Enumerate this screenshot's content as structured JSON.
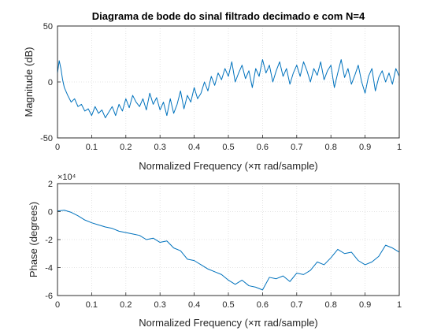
{
  "chart_data": [
    {
      "type": "line",
      "title": "Diagrama de bode do sinal filtrado decimado e com N=4",
      "xlabel": "Normalized Frequency  (×π rad/sample)",
      "ylabel": "Magnitude (dB)",
      "xlim": [
        0,
        1
      ],
      "ylim": [
        -50,
        50
      ],
      "xticks": [
        0,
        0.1,
        0.2,
        0.3,
        0.4,
        0.5,
        0.6,
        0.7,
        0.8,
        0.9,
        1
      ],
      "yticks": [
        -50,
        0,
        50
      ],
      "grid": true,
      "series": [
        {
          "color": "#0072bd",
          "x": [
            0,
            0.005,
            0.01,
            0.015,
            0.02,
            0.03,
            0.04,
            0.05,
            0.06,
            0.07,
            0.08,
            0.09,
            0.1,
            0.11,
            0.12,
            0.13,
            0.14,
            0.15,
            0.16,
            0.17,
            0.18,
            0.19,
            0.2,
            0.21,
            0.22,
            0.23,
            0.24,
            0.25,
            0.26,
            0.27,
            0.28,
            0.29,
            0.3,
            0.31,
            0.32,
            0.33,
            0.34,
            0.35,
            0.36,
            0.37,
            0.38,
            0.39,
            0.4,
            0.41,
            0.42,
            0.43,
            0.44,
            0.45,
            0.46,
            0.47,
            0.48,
            0.49,
            0.5,
            0.51,
            0.52,
            0.53,
            0.54,
            0.55,
            0.56,
            0.57,
            0.58,
            0.59,
            0.6,
            0.61,
            0.62,
            0.63,
            0.64,
            0.65,
            0.66,
            0.67,
            0.68,
            0.69,
            0.7,
            0.71,
            0.72,
            0.73,
            0.74,
            0.75,
            0.76,
            0.77,
            0.78,
            0.79,
            0.8,
            0.81,
            0.82,
            0.83,
            0.84,
            0.85,
            0.86,
            0.87,
            0.88,
            0.89,
            0.9,
            0.91,
            0.92,
            0.93,
            0.94,
            0.95,
            0.96,
            0.97,
            0.98,
            0.99,
            1
          ],
          "values": [
            8,
            19,
            12,
            2,
            -5,
            -12,
            -18,
            -15,
            -22,
            -20,
            -26,
            -24,
            -30,
            -22,
            -28,
            -25,
            -32,
            -27,
            -22,
            -30,
            -20,
            -26,
            -15,
            -23,
            -12,
            -18,
            -22,
            -15,
            -25,
            -10,
            -20,
            -14,
            -25,
            -18,
            -30,
            -15,
            -28,
            -20,
            -8,
            -24,
            -12,
            -18,
            -5,
            -15,
            -10,
            0,
            -8,
            5,
            -3,
            8,
            2,
            12,
            5,
            18,
            0,
            8,
            15,
            3,
            10,
            -5,
            12,
            5,
            20,
            8,
            15,
            0,
            10,
            18,
            5,
            12,
            -2,
            8,
            15,
            5,
            18,
            10,
            0,
            12,
            6,
            18,
            2,
            10,
            15,
            -5,
            8,
            20,
            4,
            12,
            -2,
            6,
            15,
            0,
            -10,
            5,
            12,
            -8,
            4,
            10,
            0,
            8,
            -2,
            12,
            5
          ]
        }
      ]
    },
    {
      "type": "line",
      "title": "",
      "xlabel": "Normalized Frequency  (×π rad/sample)",
      "ylabel": "Phase (degrees)",
      "exponent_label": "×10⁴",
      "xlim": [
        0,
        1
      ],
      "ylim": [
        -6,
        2
      ],
      "xticks": [
        0,
        0.1,
        0.2,
        0.3,
        0.4,
        0.5,
        0.6,
        0.7,
        0.8,
        0.9,
        1
      ],
      "yticks": [
        -6,
        -4,
        -2,
        0,
        2
      ],
      "grid": true,
      "series": [
        {
          "color": "#0072bd",
          "x": [
            0,
            0.02,
            0.04,
            0.06,
            0.08,
            0.1,
            0.12,
            0.14,
            0.16,
            0.18,
            0.2,
            0.22,
            0.24,
            0.26,
            0.28,
            0.3,
            0.32,
            0.34,
            0.36,
            0.38,
            0.4,
            0.42,
            0.44,
            0.46,
            0.48,
            0.5,
            0.52,
            0.54,
            0.56,
            0.58,
            0.6,
            0.62,
            0.64,
            0.66,
            0.68,
            0.7,
            0.72,
            0.74,
            0.76,
            0.78,
            0.8,
            0.82,
            0.84,
            0.86,
            0.88,
            0.9,
            0.92,
            0.94,
            0.96,
            0.98,
            1
          ],
          "values": [
            0.05,
            0.1,
            -0.05,
            -0.3,
            -0.6,
            -0.8,
            -0.95,
            -1.1,
            -1.2,
            -1.4,
            -1.5,
            -1.6,
            -1.7,
            -2.0,
            -1.9,
            -2.2,
            -2.1,
            -2.6,
            -2.8,
            -3.4,
            -3.5,
            -3.8,
            -4.1,
            -4.3,
            -4.5,
            -4.9,
            -5.2,
            -4.9,
            -5.3,
            -5.4,
            -5.6,
            -4.7,
            -4.8,
            -4.6,
            -5.0,
            -4.4,
            -4.5,
            -4.2,
            -3.6,
            -3.8,
            -3.3,
            -2.7,
            -3.0,
            -2.9,
            -3.5,
            -3.8,
            -3.6,
            -3.2,
            -2.4,
            -2.6,
            -2.9
          ]
        }
      ]
    }
  ]
}
